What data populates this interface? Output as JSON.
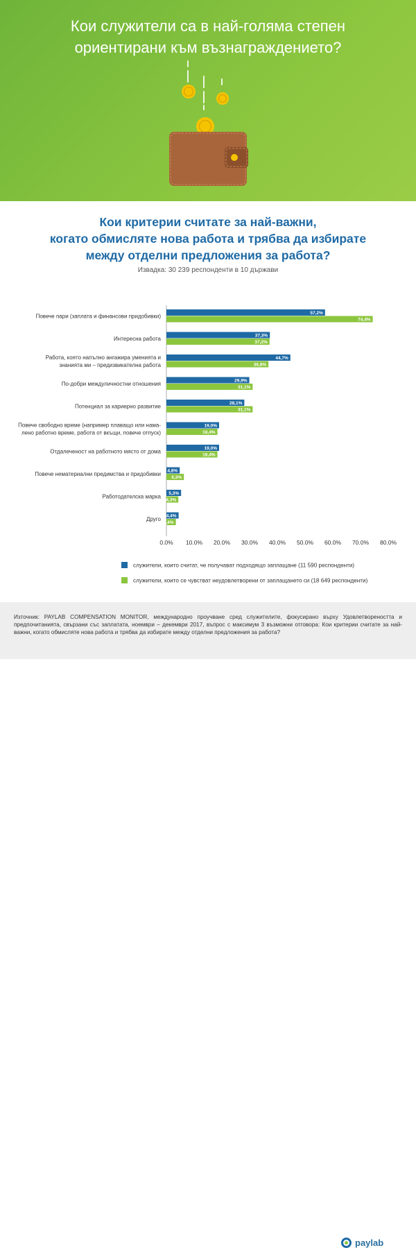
{
  "header": {
    "title_line1": "Кои служители са в най-голяма степен",
    "title_line2": "ориентирани към възнаграждението?"
  },
  "chart_title": {
    "line1": "Кои критерии считате за най-важни,",
    "line2": "когато обмисляте нова работа и трябва да избирате",
    "line3": "между отделни предложения за работа?"
  },
  "subtitle": "Извадка: 30 239 респонденти в 10 държави",
  "colors": {
    "blue": "#1f6aa5",
    "green": "#8cc63f",
    "header_bg": "#8cc63f",
    "title_blue": "#1f6aa5"
  },
  "chart_data": {
    "type": "bar",
    "orientation": "horizontal",
    "categories": [
      [
        "Повече пари (заплата и финансови придобивки)"
      ],
      [
        "Интересна работа"
      ],
      [
        "Работа, която напълно ангажира уменията и",
        "знанията ми – предизвикателна работа"
      ],
      [
        "По-добри междуличностни отношения"
      ],
      [
        "Потенциал за кариерно развитие"
      ],
      [
        "Повече свободно време (например плаващо  или нама-",
        "лено работно  време, работа от вкъщи, повече отпуск)"
      ],
      [
        "Отдалеченост на работното място от дома"
      ],
      [
        "Повече нематериални предимства и придобивки"
      ],
      [
        "Работодателска марка"
      ],
      [
        "Друго"
      ]
    ],
    "series": [
      {
        "name": "служители, които считат, че получават подходящо заплащане (11 590 респонденти)",
        "values": [
          57.2,
          37.3,
          44.7,
          29.9,
          28.1,
          19.0,
          19.0,
          4.8,
          5.3,
          4.4
        ],
        "labels": [
          "57,2%",
          "37,3%",
          "44,7%",
          "29,9%",
          "28,1%",
          "19,0%",
          "19,0%",
          "4,8%",
          "5,3%",
          "4,4%"
        ],
        "color": "#1f6aa5"
      },
      {
        "name": "служители, които се чувстват неудовлетворени от заплащането си (18 649 респонденти)",
        "values": [
          74.4,
          37.2,
          36.8,
          31.1,
          31.1,
          18.4,
          18.4,
          6.3,
          4.3,
          3.4
        ],
        "labels": [
          "74,4%",
          "37,2%",
          "36,8%",
          "31,1%",
          "31,1%",
          "18,4%",
          "18,4%",
          "6,3%",
          "4,3%",
          "3,4%"
        ],
        "color": "#8cc63f"
      }
    ],
    "xlim": [
      0,
      80
    ],
    "xticks": [
      "0,0%",
      "10,0%",
      "20,0%",
      "30,0%",
      "40,0%",
      "50,0%",
      "60,0%",
      "70,0%",
      "80,0%"
    ],
    "grid": false,
    "legend": "bottom"
  },
  "source": "Източник: PAYLAB COMPENSATION MONITOR, международно проучване сред служителите, фокусирано върху Удовлетвореността и предпочитанията, свързани със заплатата, ноември – декември 2017, въпрос с максимум 3 възможни отговора: Кои критерии считате за най-важни, когато обмисляте нова работа и трябва да избирате между отделни предложения за работа?",
  "logo_text": "paylab"
}
